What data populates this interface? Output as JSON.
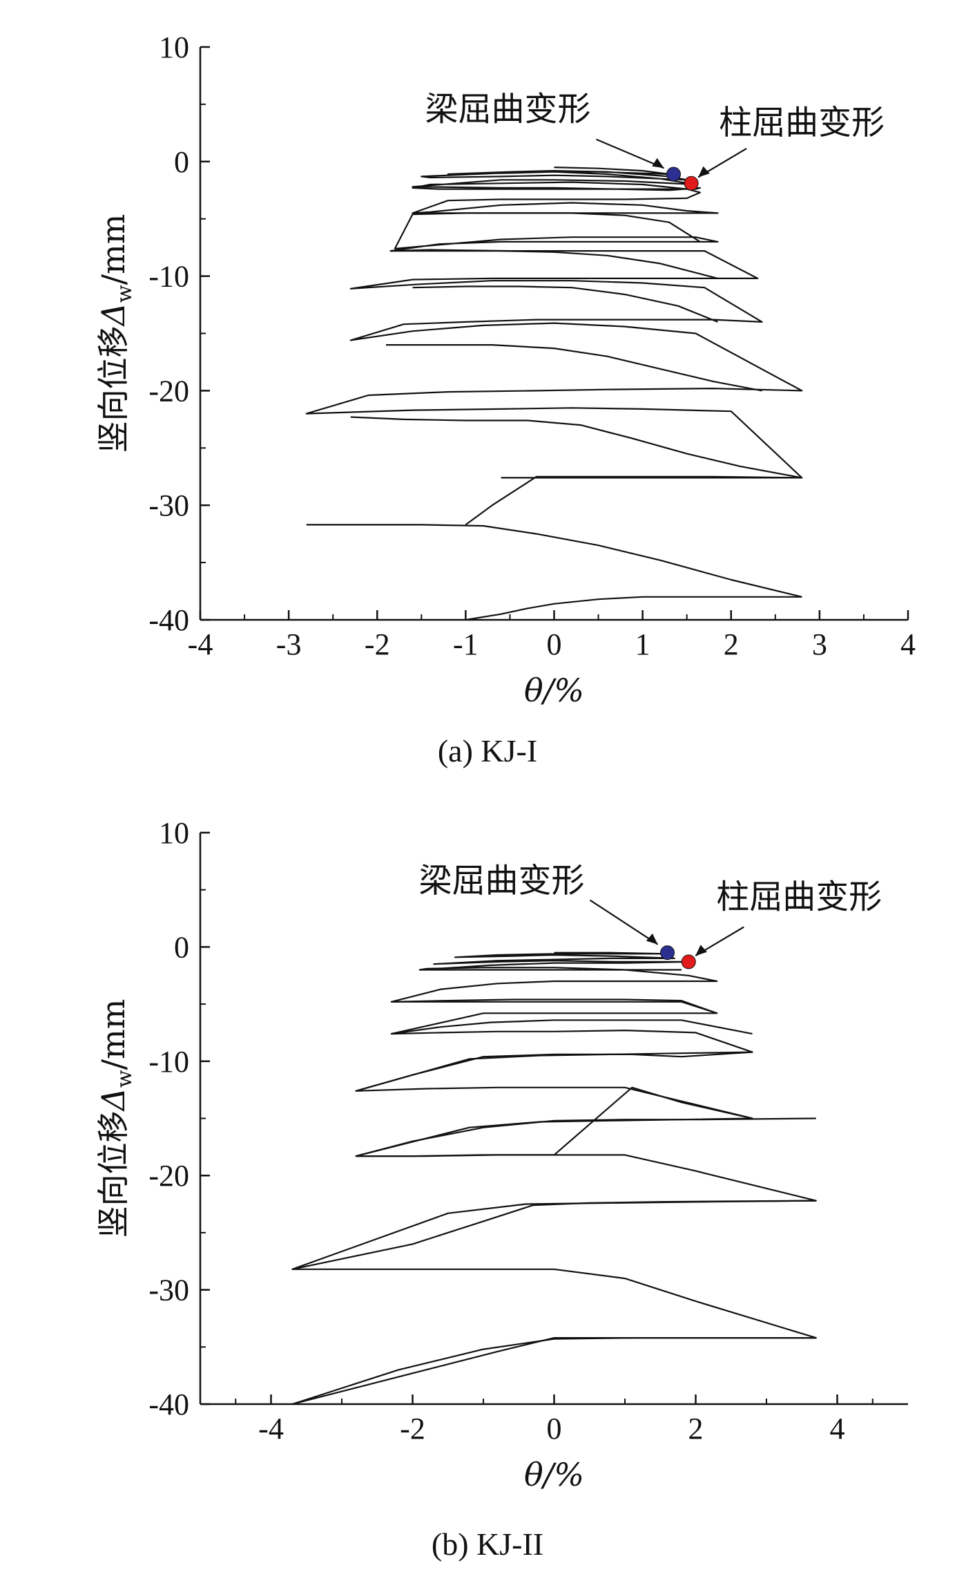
{
  "figure": {
    "colors": {
      "curve": "#111111",
      "beam_marker": "#2b2f8f",
      "column_marker": "#e11b1b"
    }
  },
  "chart_data": [
    {
      "type": "line",
      "caption": "(a) KJ-I",
      "xlabel": "θ/%",
      "ylabel": "竖向位移Δw/mm",
      "ylabel_main": "竖向位移",
      "ylabel_symbol": "Δ",
      "ylabel_sub": "w",
      "ylabel_unit": "/mm",
      "xlim": [
        -4,
        4
      ],
      "ylim": [
        -40,
        10
      ],
      "xticks": [
        -4,
        -3,
        -2,
        -1,
        0,
        1,
        2,
        3,
        4
      ],
      "xtick_labels": [
        "-4",
        "-3",
        "-2",
        "-1",
        "0",
        "1",
        "2",
        "3",
        "4"
      ],
      "yticks": [
        -40,
        -30,
        -20,
        -10,
        0,
        10
      ],
      "ytick_labels": [
        "-40",
        "-30",
        "-20",
        "-10",
        "0",
        "10"
      ],
      "grid": false,
      "series": [
        {
          "x": [
            0,
            0.5,
            1.0,
            1.3,
            0.5,
            0,
            -0.5,
            -1.2,
            -0.5,
            0,
            0.6,
            1.3,
            1.5,
            0.6,
            0,
            -0.6,
            -1.4,
            -1.5,
            -0.6,
            0,
            0.6,
            1.2,
            1.6,
            0.8,
            0,
            -0.6,
            -1.6,
            -1.5,
            -0.6,
            0,
            0.7,
            1.3,
            1.65,
            1.6,
            1.0,
            0.2,
            -0.6,
            -1.3,
            -1.6,
            -1.4,
            -0.6,
            0.2,
            1.0,
            1.5,
            1.65,
            1.5,
            0.8,
            0,
            -0.6,
            -1.2,
            -1.6,
            -1.4,
            -0.6,
            0.2,
            1.0,
            1.5,
            1.85,
            1.5,
            0.6,
            -0.3,
            -1.0,
            -1.6,
            -1.8,
            -1.5,
            -0.6,
            0.2,
            1.0,
            1.6,
            1.85,
            1.6,
            0.8,
            0,
            -0.6,
            -1.3,
            -1.85,
            -1.4,
            -0.5,
            0.4,
            1.1,
            1.7,
            2.3,
            1.8,
            0.9,
            0,
            -0.7,
            -1.6,
            -2.3,
            -1.5,
            -0.7,
            0.2,
            1.0,
            1.7,
            2.35,
            1.8,
            0.8,
            -0.2,
            -1.0,
            -1.7,
            -2.3,
            -1.6,
            -0.8,
            0,
            0.8,
            1.6,
            2.8,
            1.8,
            0.6,
            -0.2,
            -1.2,
            -2.1,
            -2.8,
            -1.6,
            -0.6,
            0.2,
            1.0,
            2.0,
            2.8,
            1.8,
            0.6,
            -0.2,
            -0.7,
            -1.0
          ],
          "y": [
            -0.5,
            -0.6,
            -0.8,
            -1.1,
            -0.9,
            -0.9,
            -1.0,
            -1.1,
            -0.9,
            -0.8,
            -0.9,
            -1.3,
            -1.6,
            -1.3,
            -1.2,
            -1.3,
            -1.4,
            -1.3,
            -1.0,
            -0.9,
            -1.1,
            -1.5,
            -2.0,
            -1.7,
            -1.6,
            -1.6,
            -2.2,
            -2.2,
            -2.3,
            -2.3,
            -2.4,
            -2.5,
            -2.3,
            -2.4,
            -2.4,
            -2.4,
            -2.4,
            -2.4,
            -2.3,
            -2.0,
            -1.9,
            -1.8,
            -2.0,
            -2.4,
            -2.7,
            -3.2,
            -3.3,
            -3.3,
            -3.3,
            -3.4,
            -4.5,
            -4.4,
            -3.8,
            -3.6,
            -3.8,
            -4.3,
            -4.5,
            -4.5,
            -4.5,
            -4.5,
            -4.5,
            -4.6,
            -7.6,
            -7.4,
            -6.8,
            -6.6,
            -6.6,
            -6.6,
            -7.0,
            -7.0,
            -7.0,
            -7.0,
            -7.0,
            -7.2,
            -7.8,
            -7.7,
            -7.8,
            -7.8,
            -7.8,
            -7.8,
            -10.2,
            -10.2,
            -10.2,
            -10.2,
            -10.2,
            -10.3,
            -11.1,
            -10.7,
            -10.4,
            -10.4,
            -10.6,
            -11.0,
            -14.0,
            -13.8,
            -13.8,
            -13.8,
            -14.0,
            -14.2,
            -15.6,
            -14.8,
            -14.3,
            -14.1,
            -14.4,
            -15.0,
            -20.0,
            -19.8,
            -19.9,
            -20.0,
            -20.1,
            -20.4,
            -22.0,
            -21.7,
            -21.6,
            -21.5,
            -21.6,
            -21.8,
            -27.6,
            -27.5,
            -27.5,
            -27.5,
            -30.0,
            -31.7
          ]
        }
      ],
      "extra_series": [
        {
          "x": [
            -2.8,
            -2.2,
            -1.5,
            -0.8,
            -0.2,
            0.5,
            1.2,
            2.0,
            2.8
          ],
          "y": [
            -31.7,
            -31.7,
            -31.7,
            -31.8,
            -32.5,
            -33.5,
            -34.8,
            -36.5,
            -38.0
          ]
        },
        {
          "x": [
            2.8,
            2.2,
            1.6,
            1.0,
            0.5,
            0.0,
            -0.3,
            -0.6,
            -1.0
          ],
          "y": [
            -38.0,
            -38.0,
            -38.0,
            -38.0,
            -38.2,
            -38.6,
            -39.0,
            -39.5,
            -40.0
          ]
        },
        {
          "x": [
            2.8,
            2.2,
            1.6,
            1.0,
            0.5,
            0,
            -0.6
          ],
          "y": [
            -27.6,
            -27.6,
            -27.6,
            -27.6,
            -27.6,
            -27.6,
            -27.6
          ]
        },
        {
          "x": [
            -2.3,
            -1.7,
            -1.0,
            -0.3,
            0.3,
            0.9,
            1.5,
            2.1,
            2.8
          ],
          "y": [
            -22.3,
            -22.5,
            -22.6,
            -22.6,
            -23.0,
            -24.2,
            -25.5,
            -26.6,
            -27.6
          ]
        },
        {
          "x": [
            -1.9,
            -1.3,
            -0.7,
            0,
            0.6,
            1.2,
            1.8,
            2.35
          ],
          "y": [
            -16.0,
            -16.0,
            -16.0,
            -16.3,
            -17.0,
            -18.1,
            -19.2,
            -20.0
          ]
        },
        {
          "x": [
            -1.6,
            -1.0,
            -0.4,
            0.2,
            0.8,
            1.4,
            1.85
          ],
          "y": [
            -11.0,
            -10.9,
            -10.9,
            -11.0,
            -11.6,
            -12.6,
            -14.0
          ]
        },
        {
          "x": [
            -1.85,
            -1.2,
            -0.6,
            0.0,
            0.6,
            1.2,
            1.85
          ],
          "y": [
            -7.8,
            -7.8,
            -7.8,
            -7.9,
            -8.2,
            -8.9,
            -10.2
          ]
        },
        {
          "x": [
            -1.6,
            -1.0,
            -0.4,
            0.2,
            0.8,
            1.3,
            1.65
          ],
          "y": [
            -4.5,
            -4.5,
            -4.5,
            -4.5,
            -4.7,
            -5.3,
            -7.0
          ]
        }
      ],
      "markers": [
        {
          "label": "梁屈曲变形",
          "x": 1.35,
          "y": -1.1,
          "color": "#2b2f8f"
        },
        {
          "label": "柱屈曲变形",
          "x": 1.55,
          "y": -1.9,
          "color": "#e11b1b"
        }
      ]
    },
    {
      "type": "line",
      "caption": "(b)  KJ-II",
      "xlabel": "θ/%",
      "ylabel": "竖向位移Δw/mm",
      "ylabel_main": "竖向位移",
      "ylabel_symbol": "Δ",
      "ylabel_sub": "w",
      "ylabel_unit": "/mm",
      "xlim": [
        -5,
        5
      ],
      "ylim": [
        -40,
        10
      ],
      "xticks": [
        -4,
        -2,
        0,
        2,
        4
      ],
      "xtick_labels": [
        "-4",
        "-2",
        "0",
        "2",
        "4"
      ],
      "yticks": [
        -40,
        -30,
        -20,
        -10,
        0,
        10
      ],
      "ytick_labels": [
        "-40",
        "-30",
        "-20",
        "-10",
        "0",
        "10"
      ],
      "grid": false,
      "series": [
        {
          "x": [
            0,
            0.8,
            1.6,
            0.8,
            0,
            -0.8,
            -1.4,
            -0.6,
            0,
            0.8,
            1.7,
            0.8,
            0,
            -0.8,
            -1.7,
            -0.8,
            0,
            0.9,
            1.9,
            1.0,
            0,
            -0.9,
            -1.9,
            -1.8,
            -1.0,
            0,
            1.0,
            1.9,
            2.3,
            1.6,
            0.8,
            0,
            -0.8,
            -1.6,
            -2.3,
            -1.5,
            -0.6,
            0.2,
            1.0,
            1.8,
            2.3,
            1.6,
            0.8,
            0,
            -1.0,
            -2.3,
            -1.6,
            -0.8,
            0,
            1.0,
            2.0,
            2.8,
            1.8,
            0.8,
            -0.2,
            -1.2,
            -2.8,
            -1.8,
            -0.8,
            0,
            1.0,
            2.8,
            1.8,
            0.8,
            -0.2,
            -1.2,
            -2.8,
            -1.8,
            -0.8,
            0.2,
            1.0,
            2.0,
            3.7,
            2.2,
            0.8,
            -0.4,
            -1.5,
            -3.7,
            -2.2,
            -1.0,
            0,
            1.0,
            2.0,
            3.7,
            2.5,
            1.2,
            0,
            -1.0,
            -2.2,
            -3.7
          ],
          "y": [
            -0.5,
            -0.5,
            -0.6,
            -0.6,
            -0.6,
            -0.7,
            -0.9,
            -0.8,
            -0.7,
            -0.8,
            -1.0,
            -1.0,
            -1.1,
            -1.2,
            -1.5,
            -1.3,
            -1.2,
            -1.3,
            -1.3,
            -1.4,
            -1.4,
            -1.6,
            -2.0,
            -1.9,
            -1.8,
            -1.8,
            -2.0,
            -2.5,
            -3.0,
            -3.0,
            -3.0,
            -3.0,
            -3.2,
            -3.7,
            -4.8,
            -4.7,
            -4.6,
            -4.6,
            -4.6,
            -4.7,
            -5.8,
            -5.8,
            -5.8,
            -5.8,
            -5.8,
            -7.6,
            -7.5,
            -7.4,
            -7.4,
            -7.3,
            -7.5,
            -9.2,
            -9.3,
            -9.4,
            -9.5,
            -9.8,
            -12.6,
            -12.4,
            -12.3,
            -12.3,
            -12.3,
            -15.0,
            -15.1,
            -15.2,
            -15.3,
            -15.8,
            -18.3,
            -18.3,
            -18.2,
            -18.2,
            -18.2,
            -19.6,
            -22.2,
            -22.3,
            -22.4,
            -22.5,
            -23.3,
            -28.2,
            -28.2,
            -28.2,
            -28.2,
            -29.0,
            -31.0,
            -34.2,
            -34.2,
            -34.2,
            -34.3,
            -35.2,
            -37.0,
            -40.0
          ]
        }
      ],
      "extra_series": [
        {
          "x": [
            -1.9,
            -1.2,
            -0.5,
            0.3,
            1.0,
            1.8
          ],
          "y": [
            -2.0,
            -2.0,
            -2.0,
            -2.0,
            -2.0,
            -2.0
          ]
        },
        {
          "x": [
            -2.3,
            -1.6,
            -0.9,
            0,
            1.0,
            1.8,
            2.3
          ],
          "y": [
            -4.8,
            -4.8,
            -4.8,
            -4.8,
            -4.8,
            -4.8,
            -5.8
          ]
        },
        {
          "x": [
            -2.3,
            -1.6,
            -0.9,
            0,
            1.0,
            1.8,
            2.8
          ],
          "y": [
            -7.6,
            -7.0,
            -6.6,
            -6.4,
            -6.4,
            -6.4,
            -7.6
          ]
        },
        {
          "x": [
            -2.8,
            -2.0,
            -1.0,
            0,
            1.1,
            1.8,
            2.8
          ],
          "y": [
            -12.6,
            -11.2,
            -9.6,
            -9.4,
            -9.4,
            -9.6,
            -9.2
          ]
        },
        {
          "x": [
            -2.8,
            -2.0,
            -1.0,
            0,
            1.1,
            1.8,
            2.8
          ],
          "y": [
            -18.3,
            -18.3,
            -18.2,
            -18.2,
            -12.3,
            -13.6,
            -15.0
          ]
        },
        {
          "x": [
            -2.8,
            -2.0,
            -1.0,
            0,
            1.0,
            2.0,
            3.7
          ],
          "y": [
            -18.3,
            -17.0,
            -15.8,
            -15.2,
            -15.1,
            -15.1,
            -15.0
          ]
        },
        {
          "x": [
            -3.7,
            -2.0,
            -1.0,
            -0.3,
            0.5,
            1.5,
            3.7
          ],
          "y": [
            -28.2,
            -26.0,
            -24.0,
            -22.6,
            -22.4,
            -22.3,
            -22.2
          ]
        },
        {
          "x": [
            -3.7,
            -2.0,
            -0.8,
            0,
            1.0,
            2.0,
            3.7
          ],
          "y": [
            -40.0,
            -37.3,
            -35.4,
            -34.2,
            -34.2,
            -34.2,
            -34.2
          ]
        }
      ],
      "markers": [
        {
          "label": "梁屈曲变形",
          "x": 1.6,
          "y": -0.5,
          "color": "#2b2f8f"
        },
        {
          "label": "柱屈曲变形",
          "x": 1.9,
          "y": -1.3,
          "color": "#e11b1b"
        }
      ]
    }
  ]
}
